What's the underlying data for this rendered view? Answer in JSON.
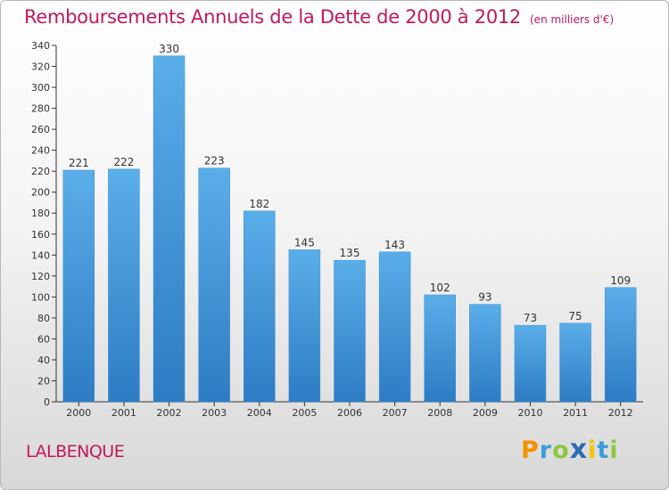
{
  "chart_data": {
    "type": "bar",
    "title": "Remboursements Annuels de la Dette de 2000 à 2012",
    "unit": "(en milliers d'€)",
    "categories": [
      "2000",
      "2001",
      "2002",
      "2003",
      "2004",
      "2005",
      "2006",
      "2007",
      "2008",
      "2009",
      "2010",
      "2011",
      "2012"
    ],
    "values": [
      221,
      222,
      330,
      223,
      182,
      145,
      135,
      143,
      102,
      93,
      73,
      75,
      109
    ],
    "ylim": [
      0,
      340
    ],
    "yticks": [
      0,
      20,
      40,
      60,
      80,
      100,
      120,
      140,
      160,
      180,
      200,
      220,
      240,
      260,
      280,
      300,
      320,
      340
    ],
    "grid": false,
    "bar_color_top": "#5aaee8",
    "bar_color_bottom": "#2d7cc4"
  },
  "commune": "LALBENQUE",
  "brand": {
    "letters": [
      "P",
      "r",
      "o",
      "x",
      "i",
      "t",
      "i"
    ],
    "colors": [
      "#f39200",
      "#3a9bd9",
      "#8dc63f",
      "#2e6db4",
      "#f5c400",
      "#3a9bd9",
      "#8dc63f"
    ]
  }
}
